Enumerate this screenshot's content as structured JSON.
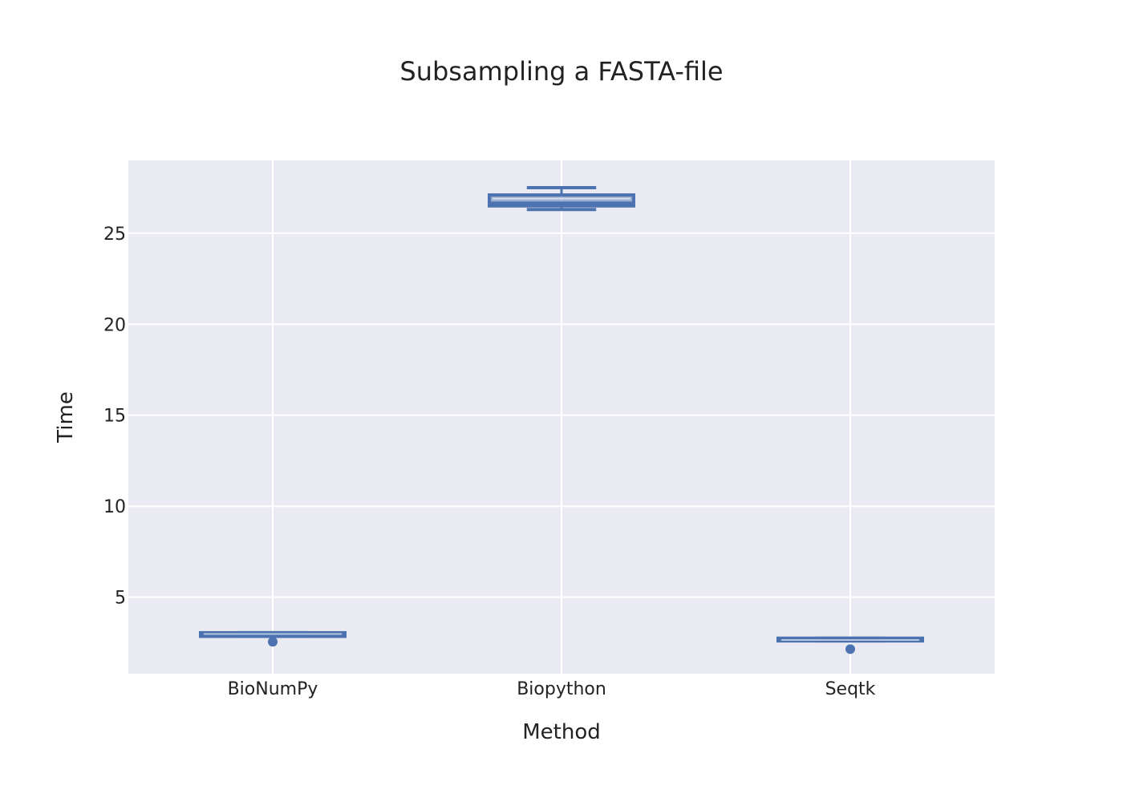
{
  "chart_data": {
    "type": "box",
    "title": "Subsampling a FASTA-file",
    "xlabel": "Method",
    "ylabel": "Time",
    "ylim": [
      0.8,
      29
    ],
    "yticks": [
      5,
      10,
      15,
      20,
      25
    ],
    "grid": true,
    "color": "#4c72b0",
    "plot_background": "#eaeaf2",
    "categories": [
      "BioNumPy",
      "Biopython",
      "Seqtk"
    ],
    "boxes": [
      {
        "name": "BioNumPy",
        "min": 2.85,
        "q1": 2.85,
        "median": 2.95,
        "q3": 3.05,
        "max": 3.05,
        "mean": 2.98,
        "outliers": [
          2.55
        ]
      },
      {
        "name": "Biopython",
        "min": 26.3,
        "q1": 26.5,
        "median": 26.65,
        "q3": 27.1,
        "max": 27.5,
        "mean": 26.9,
        "outliers": []
      },
      {
        "name": "Seqtk",
        "min": 2.6,
        "q1": 2.6,
        "median": 2.65,
        "q3": 2.75,
        "max": 2.75,
        "mean": 2.65,
        "outliers": [
          2.15
        ]
      }
    ]
  }
}
